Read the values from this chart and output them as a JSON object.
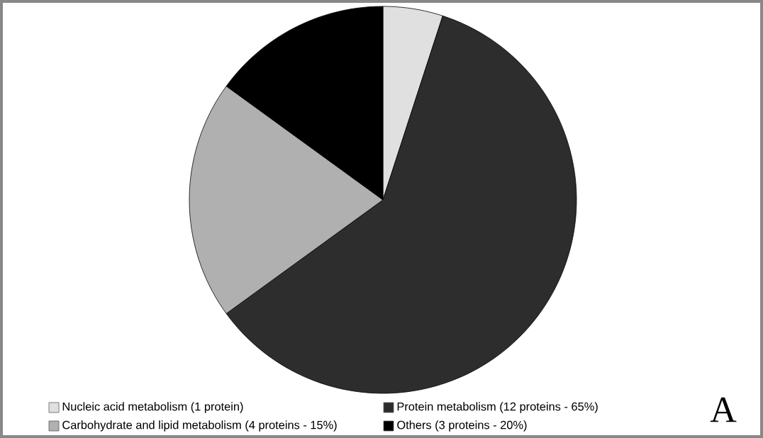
{
  "chart_data": {
    "type": "pie",
    "categories": [
      "Nucleic acid metabolism (1 protein)",
      "Protein metabolism (12 proteins - 65%)",
      "Carbohydrate and lipid metabolism (4 proteins - 15%)",
      "Others (3 proteins - 20%)"
    ],
    "values": [
      5,
      60,
      20,
      15
    ],
    "colors": [
      "#e0e0e0",
      "#2d2d2d",
      "#b0b0b0",
      "#000000"
    ],
    "legend": "bottom",
    "annotations": [
      "A"
    ]
  }
}
